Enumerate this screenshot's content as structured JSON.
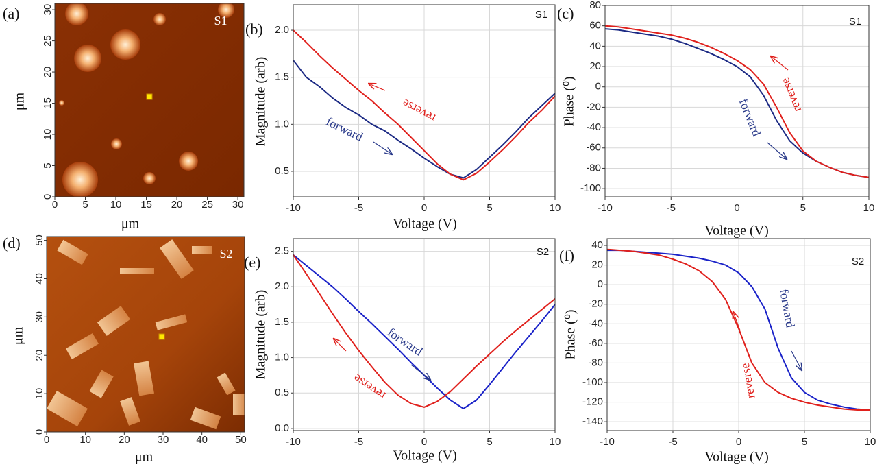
{
  "chart_data": [
    {
      "type": "image",
      "panel": "(a)",
      "tag": "S1",
      "xlabel": "μm",
      "ylabel": "μm",
      "xlim": [
        0,
        31
      ],
      "ylim": [
        0,
        31
      ],
      "xticks": [
        0,
        5,
        10,
        15,
        20,
        25,
        30
      ],
      "yticks": [
        0,
        5,
        10,
        15,
        20,
        25,
        30
      ]
    },
    {
      "type": "line",
      "panel": "(b)",
      "tag": "S1",
      "xlabel": "Voltage (V)",
      "ylabel": "Magnitude (arb)",
      "x": [
        -10,
        -9,
        -8,
        -7,
        -6,
        -5,
        -4,
        -3,
        -2,
        -1,
        0,
        1,
        2,
        3,
        4,
        5,
        6,
        7,
        8,
        9,
        10
      ],
      "series": [
        {
          "name": "forward",
          "color": "#1c2a84",
          "values": [
            1.68,
            1.5,
            1.4,
            1.28,
            1.18,
            1.1,
            1.0,
            0.93,
            0.83,
            0.74,
            0.64,
            0.55,
            0.47,
            0.43,
            0.52,
            0.65,
            0.78,
            0.92,
            1.07,
            1.2,
            1.33
          ]
        },
        {
          "name": "reverse",
          "color": "#e0201c",
          "values": [
            2.0,
            1.87,
            1.73,
            1.6,
            1.48,
            1.36,
            1.25,
            1.12,
            1.0,
            0.86,
            0.72,
            0.58,
            0.47,
            0.41,
            0.48,
            0.6,
            0.73,
            0.87,
            1.02,
            1.15,
            1.3
          ]
        }
      ],
      "xlim": [
        -10,
        10
      ],
      "ylim": [
        0.23,
        2.27
      ],
      "xticks": [
        -10,
        -5,
        0,
        5,
        10
      ],
      "yticks": [
        0.5,
        {
          "value": 1,
          "label": "1.0"
        },
        1.5,
        {
          "value": 2,
          "label": "2.0"
        }
      ],
      "grid": true
    },
    {
      "type": "line",
      "panel": "(c)",
      "tag": "S1",
      "xlabel": "Voltage (V)",
      "ylabel": "Phase (⁰)",
      "x": [
        -10,
        -9,
        -8,
        -7,
        -6,
        -5,
        -4,
        -3,
        -2,
        -1,
        0,
        1,
        2,
        3,
        4,
        5,
        6,
        7,
        8,
        9,
        10
      ],
      "series": [
        {
          "name": "forward",
          "color": "#1c2a84",
          "values": [
            57,
            56,
            54,
            52,
            50,
            47,
            43,
            38,
            33,
            27,
            20,
            10,
            -8,
            -33,
            -53,
            -65,
            -73,
            -79,
            -84,
            -87,
            -89
          ]
        },
        {
          "name": "reverse",
          "color": "#e0201c",
          "values": [
            60,
            59,
            57,
            55,
            53,
            51,
            48,
            44,
            39,
            33,
            26,
            17,
            3,
            -20,
            -45,
            -63,
            -73,
            -79,
            -84,
            -87,
            -89
          ]
        }
      ],
      "xlim": [
        -10,
        10
      ],
      "ylim": [
        -108,
        80
      ],
      "xticks": [
        -10,
        -5,
        0,
        5,
        10
      ],
      "yticks": [
        -100,
        -80,
        -60,
        -40,
        -20,
        0,
        20,
        40,
        60,
        80
      ],
      "grid": true
    },
    {
      "type": "image",
      "panel": "(d)",
      "tag": "S2",
      "xlabel": "μm",
      "ylabel": "μm",
      "xlim": [
        0,
        51
      ],
      "ylim": [
        0,
        51
      ],
      "xticks": [
        0,
        10,
        20,
        30,
        40,
        50
      ],
      "yticks": [
        0,
        10,
        20,
        30,
        40,
        50
      ]
    },
    {
      "type": "line",
      "panel": "(e)",
      "tag": "S2",
      "xlabel": "Voltage (V)",
      "ylabel": "Magnitude (arb)",
      "x": [
        -10,
        -9,
        -8,
        -7,
        -6,
        -5,
        -4,
        -3,
        -2,
        -1,
        0,
        1,
        2,
        3,
        4,
        5,
        6,
        7,
        8,
        9,
        10
      ],
      "series": [
        {
          "name": "forward",
          "color": "#1a22c8",
          "values": [
            2.45,
            2.3,
            2.15,
            2.0,
            1.83,
            1.65,
            1.48,
            1.3,
            1.12,
            0.93,
            0.75,
            0.57,
            0.4,
            0.28,
            0.4,
            0.62,
            0.85,
            1.08,
            1.3,
            1.52,
            1.75
          ]
        },
        {
          "name": "reverse",
          "color": "#e0201c",
          "values": [
            2.45,
            2.18,
            1.9,
            1.62,
            1.35,
            1.1,
            0.87,
            0.65,
            0.47,
            0.35,
            0.3,
            0.38,
            0.52,
            0.7,
            0.88,
            1.05,
            1.22,
            1.38,
            1.53,
            1.68,
            1.83
          ]
        }
      ],
      "xlim": [
        -10,
        10
      ],
      "ylim": [
        -0.03,
        2.68
      ],
      "xticks": [
        -10,
        -5,
        0,
        5,
        10
      ],
      "yticks": [
        {
          "value": 0,
          "label": "0.0"
        },
        0.5,
        {
          "value": 1,
          "label": "1.0"
        },
        1.5,
        {
          "value": 2,
          "label": "2.0"
        },
        2.5
      ],
      "grid": true
    },
    {
      "type": "line",
      "panel": "(f)",
      "tag": "S2",
      "xlabel": "Voltage (V)",
      "ylabel": "Phase (⁰)",
      "x": [
        -10,
        -9,
        -8,
        -7,
        -6,
        -5,
        -4,
        -3,
        -2,
        -1,
        0,
        1,
        2,
        3,
        4,
        5,
        6,
        7,
        8,
        9,
        10
      ],
      "series": [
        {
          "name": "forward",
          "color": "#1a22c8",
          "values": [
            35,
            35,
            34,
            33,
            32,
            31,
            29,
            27,
            24,
            20,
            12,
            -2,
            -25,
            -65,
            -95,
            -110,
            -118,
            -122,
            -125,
            -127,
            -128
          ]
        },
        {
          "name": "reverse",
          "color": "#e0201c",
          "values": [
            36,
            35,
            34,
            32,
            30,
            26,
            21,
            14,
            3,
            -15,
            -45,
            -80,
            -100,
            -110,
            -116,
            -120,
            -123,
            -125,
            -127,
            -128,
            -128
          ]
        }
      ],
      "xlim": [
        -10,
        10
      ],
      "ylim": [
        -149,
        47
      ],
      "xticks": [
        -10,
        -5,
        0,
        5,
        10
      ],
      "yticks": [
        -140,
        -120,
        -100,
        -80,
        -60,
        -40,
        -20,
        0,
        20,
        40
      ],
      "grid": true
    }
  ]
}
